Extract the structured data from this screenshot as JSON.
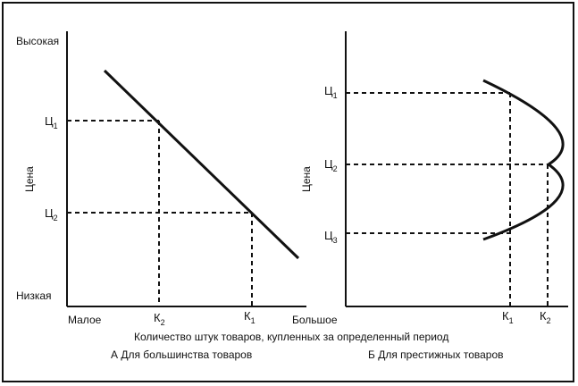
{
  "left_panel": {
    "y_axis_label": "Цена",
    "y_top_label": "Высокая",
    "y_bottom_label": "Низкая",
    "x_left_label": "Малое",
    "x_right_label": "Большое",
    "price_1": "Ц",
    "price_1_sub": "1",
    "price_2": "Ц",
    "price_2_sub": "2",
    "qty_k2": "К",
    "qty_k2_sub": "2",
    "qty_k1": "К",
    "qty_k1_sub": "1",
    "caption": "А  Для большинства товаров"
  },
  "right_panel": {
    "y_axis_label": "Цена",
    "price_1": "Ц",
    "price_1_sub": "1",
    "price_2": "Ц",
    "price_2_sub": "2",
    "price_3": "Ц",
    "price_3_sub": "3",
    "qty_k1": "К",
    "qty_k1_sub": "1",
    "qty_k2": "К",
    "qty_k2_sub": "2",
    "caption": "Б  Для престижных товаров"
  },
  "shared_x_axis_label": "Количество штук товаров, купленных за определенный период",
  "colors": {
    "ink": "#111111",
    "background": "#ffffff"
  }
}
